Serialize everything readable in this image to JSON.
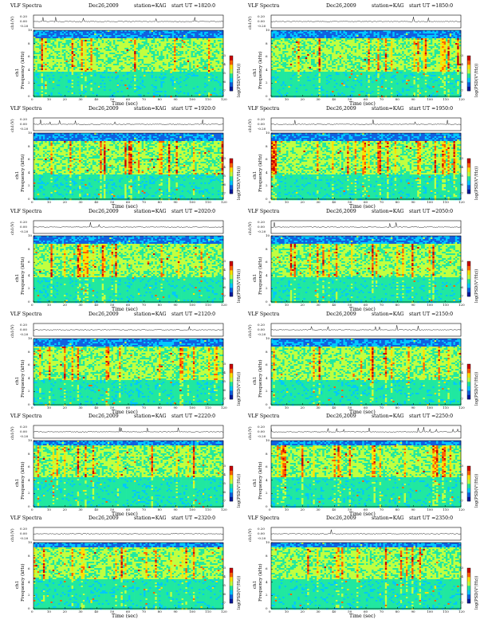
{
  "common": {
    "prefix": "VLF Spectra",
    "date": "Dec26,2009",
    "station": "station=KAG",
    "ch_label": "ch1(V)",
    "spec_label": "ch1",
    "freq_label": "Frequency (kHz)",
    "time_label": "Time (sec)",
    "cbar_label": "log(PSD(V²/Hz))",
    "signal_ticks": [
      "0.20",
      "0.00",
      "-0.20"
    ],
    "freq_ticks": [
      "0",
      "2",
      "4",
      "6",
      "8",
      "10"
    ],
    "time_ticks": [
      "0",
      "10",
      "20",
      "30",
      "40",
      "50",
      "60",
      "70",
      "80",
      "90",
      "100",
      "110",
      "120"
    ],
    "cbar_ticks": [
      "-7",
      "-6",
      "-5",
      "-4",
      "-3"
    ]
  },
  "chart_data": [
    {
      "type": "heatmap",
      "title": "start UT =1820:0",
      "x_range": [
        0,
        120
      ],
      "y_range": [
        0,
        10
      ],
      "color_range": [
        -7,
        -3
      ]
    },
    {
      "type": "heatmap",
      "title": "start UT =1850:0",
      "x_range": [
        0,
        120
      ],
      "y_range": [
        0,
        10
      ],
      "color_range": [
        -7,
        -3
      ]
    },
    {
      "type": "heatmap",
      "title": "start UT =1920:0",
      "x_range": [
        0,
        120
      ],
      "y_range": [
        0,
        10
      ],
      "color_range": [
        -7,
        -3
      ]
    },
    {
      "type": "heatmap",
      "title": "start UT =1950:0",
      "x_range": [
        0,
        120
      ],
      "y_range": [
        0,
        10
      ],
      "color_range": [
        -7,
        -3
      ]
    },
    {
      "type": "heatmap",
      "title": "start UT =2020:0",
      "x_range": [
        0,
        120
      ],
      "y_range": [
        0,
        10
      ],
      "color_range": [
        -7,
        -3
      ]
    },
    {
      "type": "heatmap",
      "title": "start UT =2050:0",
      "x_range": [
        0,
        120
      ],
      "y_range": [
        0,
        10
      ],
      "color_range": [
        -7,
        -3
      ]
    },
    {
      "type": "heatmap",
      "title": "start UT =2120:0",
      "x_range": [
        0,
        120
      ],
      "y_range": [
        0,
        10
      ],
      "color_range": [
        -7,
        -3
      ]
    },
    {
      "type": "heatmap",
      "title": "start UT =2150:0",
      "x_range": [
        0,
        120
      ],
      "y_range": [
        0,
        10
      ],
      "color_range": [
        -7,
        -3
      ]
    },
    {
      "type": "heatmap",
      "title": "start UT =2220:0",
      "x_range": [
        0,
        120
      ],
      "y_range": [
        0,
        10
      ],
      "color_range": [
        -7,
        -3
      ]
    },
    {
      "type": "heatmap",
      "title": "start UT =2250:0",
      "x_range": [
        0,
        120
      ],
      "y_range": [
        0,
        10
      ],
      "color_range": [
        -7,
        -3
      ]
    },
    {
      "type": "heatmap",
      "title": "start UT =2320:0",
      "x_range": [
        0,
        120
      ],
      "y_range": [
        0,
        10
      ],
      "color_range": [
        -7,
        -3
      ]
    },
    {
      "type": "heatmap",
      "title": "start UT =2350:0",
      "x_range": [
        0,
        120
      ],
      "y_range": [
        0,
        10
      ],
      "color_range": [
        -7,
        -3
      ]
    }
  ],
  "colormap": [
    "#0a1a9c",
    "#1060e0",
    "#00c8ff",
    "#20e8a0",
    "#c0ff40",
    "#ffe000",
    "#ff6000",
    "#cc0000"
  ]
}
